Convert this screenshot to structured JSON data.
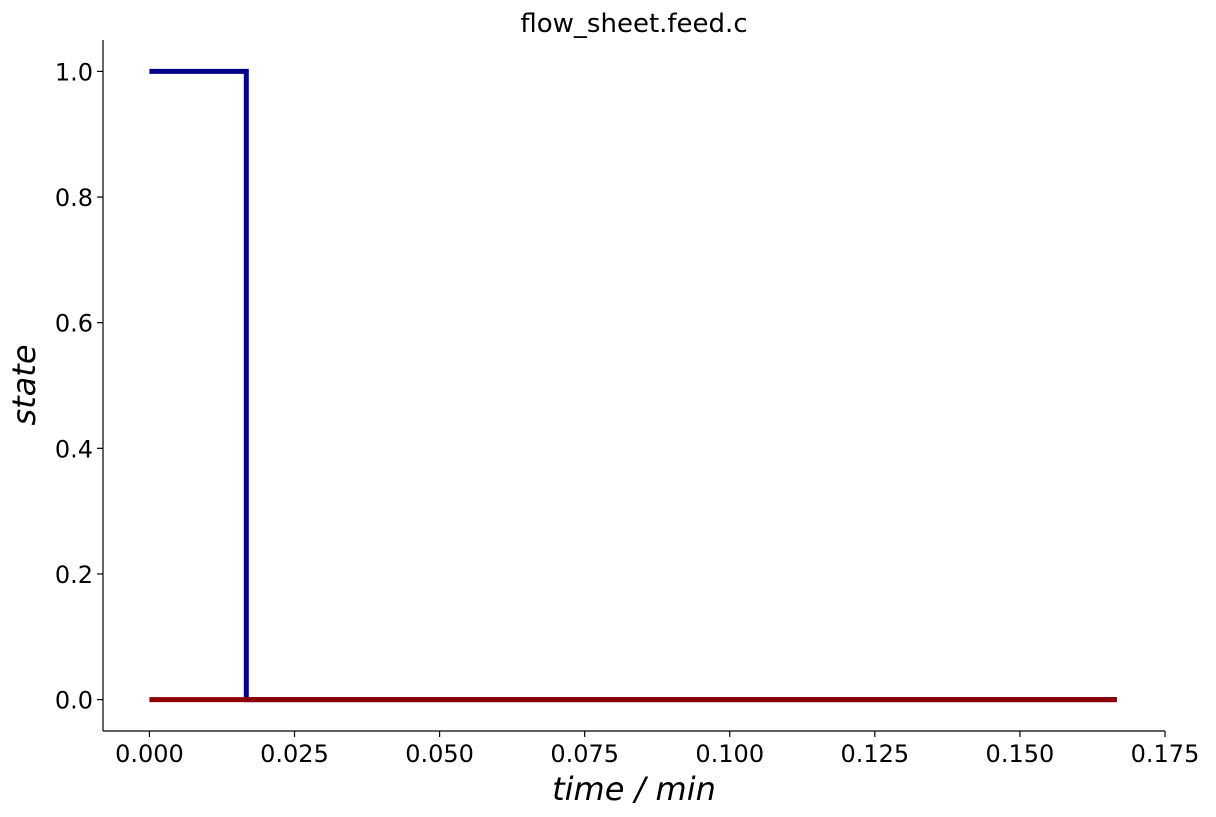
{
  "chart_data": {
    "type": "line",
    "title": "flow_sheet.feed.c",
    "xlabel": "time / min",
    "ylabel": "state",
    "xlim": [
      -0.008,
      0.175
    ],
    "ylim": [
      -0.05,
      1.05
    ],
    "xticks": [
      0.0,
      0.025,
      0.05,
      0.075,
      0.1,
      0.125,
      0.15,
      0.175
    ],
    "xtick_labels": [
      "0.000",
      "0.025",
      "0.050",
      "0.075",
      "0.100",
      "0.125",
      "0.150",
      "0.175"
    ],
    "yticks": [
      0.0,
      0.2,
      0.4,
      0.6,
      0.8,
      1.0
    ],
    "ytick_labels": [
      "0.0",
      "0.2",
      "0.4",
      "0.6",
      "0.8",
      "1.0"
    ],
    "grid": false,
    "series": [
      {
        "color": "#00008b",
        "x": [
          0.0,
          0.0167,
          0.0167,
          0.1667
        ],
        "y": [
          1.0,
          1.0,
          0.0,
          0.0
        ]
      },
      {
        "color": "#8b0000",
        "x": [
          0.0,
          0.1667
        ],
        "y": [
          0.0,
          0.0
        ]
      }
    ]
  }
}
